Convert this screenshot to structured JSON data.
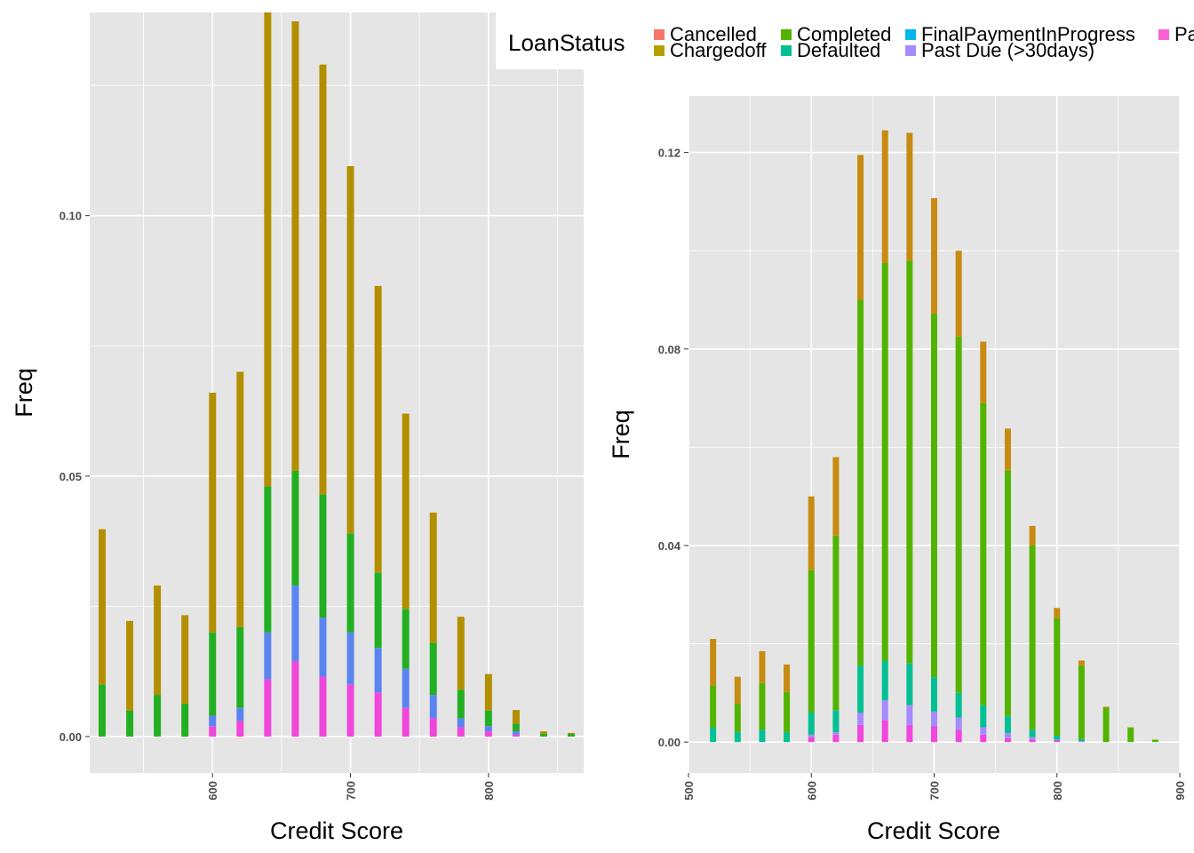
{
  "legend": {
    "title": "LoanStatus",
    "entries": [
      {
        "name": "Cancelled",
        "color": "#F8766D"
      },
      {
        "name": "Chargedoff",
        "color": "#B79F00"
      },
      {
        "name": "Completed",
        "color": "#53B400"
      },
      {
        "name": "Defaulted",
        "color": "#00C094"
      },
      {
        "name": "FinalPaymentInProgress",
        "color": "#00B6EB"
      },
      {
        "name": "Past Due (>30days)",
        "color": "#A58AFF"
      },
      {
        "name": "Pa",
        "color": "#FB61D7"
      }
    ]
  },
  "chart_data": [
    {
      "type": "bar",
      "stacked": true,
      "xlabel": "Credit Score",
      "ylabel": "Freq",
      "xlim": [
        511,
        869
      ],
      "ylim": [
        -0.007,
        0.139
      ],
      "xticks": [
        "600",
        "700",
        "800"
      ],
      "yticks": [
        "0.00",
        "0.05",
        "0.10"
      ],
      "x": [
        520,
        540,
        560,
        580,
        600,
        620,
        640,
        660,
        680,
        700,
        720,
        740,
        760,
        780,
        800,
        820,
        840,
        860
      ],
      "series": [
        {
          "name": "pink",
          "color": "#F046DA",
          "values": [
            0,
            0,
            0,
            0,
            0.002,
            0.003,
            0.011,
            0.0145,
            0.0115,
            0.01,
            0.0085,
            0.0055,
            0.0035,
            0.0018,
            0.001,
            0.0004,
            0,
            0
          ]
        },
        {
          "name": "blue",
          "color": "#5A85F0",
          "values": [
            0,
            0,
            0,
            0,
            0.002,
            0.0025,
            0.009,
            0.0145,
            0.0113,
            0.01,
            0.0085,
            0.0075,
            0.0045,
            0.0017,
            0.001,
            0.0006,
            0,
            0
          ]
        },
        {
          "name": "green",
          "color": "#22B022",
          "values": [
            0.01,
            0.005,
            0.008,
            0.0063,
            0.016,
            0.0155,
            0.028,
            0.022,
            0.0237,
            0.019,
            0.0145,
            0.0115,
            0.01,
            0.0055,
            0.003,
            0.0015,
            0.0005,
            0.0005
          ]
        },
        {
          "name": "Chargedoff",
          "color": "#B38F00",
          "values": [
            0.0298,
            0.0172,
            0.021,
            0.017,
            0.046,
            0.049,
            0.091,
            0.0863,
            0.0825,
            0.0705,
            0.055,
            0.0375,
            0.025,
            0.014,
            0.007,
            0.0026,
            0.0005,
            0.0002
          ]
        }
      ]
    },
    {
      "type": "bar",
      "stacked": true,
      "xlabel": "Credit Score",
      "ylabel": "Freq",
      "xlim": [
        500,
        900
      ],
      "ylim": [
        -0.0063,
        0.1315
      ],
      "xticks": [
        "500",
        "600",
        "700",
        "800",
        "900"
      ],
      "yticks": [
        "0.00",
        "0.04",
        "0.08",
        "0.12"
      ],
      "x": [
        520,
        540,
        560,
        580,
        600,
        620,
        640,
        660,
        680,
        700,
        720,
        740,
        760,
        780,
        800,
        820,
        840,
        860,
        880
      ],
      "series": [
        {
          "name": "pink",
          "color": "#F046DA",
          "values": [
            0,
            0,
            0,
            0,
            0.001,
            0.0015,
            0.0035,
            0.0045,
            0.0035,
            0.0032,
            0.0025,
            0.0015,
            0.0008,
            0.0005,
            0.0003,
            0,
            0,
            0,
            0
          ]
        },
        {
          "name": "purple",
          "color": "#A58AFF",
          "values": [
            0,
            0,
            0,
            0,
            0.0005,
            0.0005,
            0.0025,
            0.004,
            0.004,
            0.003,
            0.0025,
            0.0015,
            0.001,
            0.0005,
            0.0002,
            0.0002,
            0,
            0,
            0
          ]
        },
        {
          "name": "Defaulted",
          "color": "#00C094",
          "values": [
            0.003,
            0.002,
            0.0025,
            0.002,
            0.0045,
            0.0045,
            0.0095,
            0.008,
            0.0085,
            0.007,
            0.005,
            0.0045,
            0.0035,
            0.0015,
            0.0008,
            0.0004,
            0,
            0,
            0
          ]
        },
        {
          "name": "Completed",
          "color": "#53B400",
          "values": [
            0.0085,
            0.0058,
            0.0095,
            0.0082,
            0.029,
            0.0355,
            0.0745,
            0.081,
            0.082,
            0.074,
            0.0725,
            0.0615,
            0.05,
            0.0375,
            0.024,
            0.015,
            0.007,
            0.003,
            0.0005
          ]
        },
        {
          "name": "Chargedoff",
          "color": "#C78B12",
          "values": [
            0.0095,
            0.0055,
            0.0065,
            0.0056,
            0.015,
            0.016,
            0.0295,
            0.027,
            0.026,
            0.0235,
            0.0175,
            0.0125,
            0.0085,
            0.004,
            0.002,
            0.001,
            0.0002,
            0,
            0
          ]
        }
      ]
    }
  ]
}
